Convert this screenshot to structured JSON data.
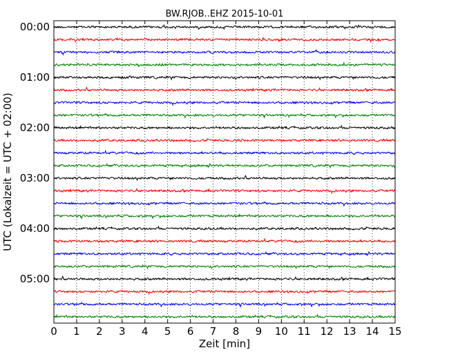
{
  "chart_data": {
    "type": "line",
    "title": "BW.RJOB..EHZ 2015-10-01",
    "xlabel": "Zeit  [min]",
    "ylabel": "UTC (Lokalzeit = UTC + 02:00)",
    "xlim": [
      0,
      15
    ],
    "x_ticks": [
      "0",
      "1",
      "2",
      "3",
      "4",
      "5",
      "6",
      "7",
      "8",
      "9",
      "10",
      "11",
      "12",
      "13",
      "14",
      "15"
    ],
    "y_tick_labels": [
      "00:00",
      "01:00",
      "02:00",
      "03:00",
      "04:00",
      "05:00"
    ],
    "grid": "vertical-dotted",
    "trace_colors": [
      "#000000",
      "#ff0000",
      "#0000ff",
      "#008000"
    ],
    "trace_count": 24,
    "trace_interval_min": 15
  }
}
